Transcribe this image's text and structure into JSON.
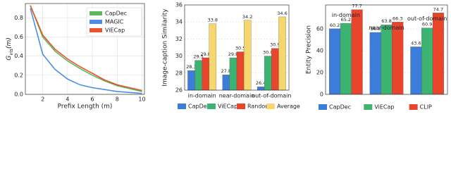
{
  "chart_data": [
    {
      "type": "line",
      "y_label_parts": [
        "G",
        "vis",
        "(m)"
      ],
      "x_label": "Prefix Length (m)",
      "x": [
        1,
        2,
        3,
        4,
        5,
        6,
        7,
        8,
        9,
        10
      ],
      "xlim": [
        0.6,
        10.2
      ],
      "xticks": [
        2,
        4,
        6,
        8,
        10
      ],
      "ylim": [
        0,
        0.95
      ],
      "yticks": [
        {
          "value": 0,
          "label": "0.0"
        },
        0.2,
        0.4,
        0.6,
        0.8
      ],
      "grid": true,
      "legend": "upper right",
      "series": [
        {
          "name": "CapDec",
          "color": "#5cb85c",
          "values": [
            0.93,
            0.6,
            0.45,
            0.35,
            0.27,
            0.2,
            0.14,
            0.09,
            0.06,
            0.03
          ]
        },
        {
          "name": "MAGIC",
          "color": "#4a90e2",
          "values": [
            0.9,
            0.42,
            0.26,
            0.16,
            0.1,
            0.07,
            0.05,
            0.03,
            0.02,
            0.01
          ]
        },
        {
          "name": "ViECap",
          "color": "#e8552c",
          "values": [
            0.93,
            0.62,
            0.47,
            0.37,
            0.29,
            0.22,
            0.15,
            0.1,
            0.07,
            0.04
          ]
        }
      ]
    },
    {
      "type": "bar",
      "y_label": "Image-caption Similarity",
      "categories": [
        "in-domain",
        "near-domain",
        "out-of-domain"
      ],
      "ylim": [
        26,
        36
      ],
      "yticks": [
        26,
        28,
        30,
        32,
        34,
        36
      ],
      "grid": true,
      "legend": "bottom",
      "series": [
        {
          "name": "CapDec",
          "color": "#3b7dd8",
          "values": [
            28.3,
            27.8,
            26.4
          ]
        },
        {
          "name": "ViECap",
          "color": "#3cb371",
          "values": [
            29.5,
            29.8,
            30.0
          ],
          "value_labels": [
            "29.5",
            "29.8",
            "30.0"
          ]
        },
        {
          "name": "Random",
          "color": "#e8452c",
          "values": [
            29.8,
            30.5,
            30.9
          ]
        },
        {
          "name": "Average",
          "color": "#f5d76e",
          "values": [
            33.8,
            34.2,
            34.6
          ]
        }
      ]
    },
    {
      "type": "bar",
      "y_label": "Entity Precision",
      "categories": [
        "in-domain",
        "near-domain",
        "out-of-domain"
      ],
      "ylim": [
        0,
        82
      ],
      "yticks": [
        0,
        20,
        40,
        60
      ],
      "grid": true,
      "legend": "bottom",
      "series": [
        {
          "name": "CapDec",
          "color": "#3b7dd8",
          "values": [
            60.2,
            56.8,
            43.6
          ]
        },
        {
          "name": "ViECap",
          "color": "#3cb371",
          "values": [
            65.2,
            63.8,
            60.9
          ]
        },
        {
          "name": "CLIP",
          "color": "#e8452c",
          "values": [
            77.7,
            66.3,
            74.7
          ]
        }
      ]
    }
  ]
}
